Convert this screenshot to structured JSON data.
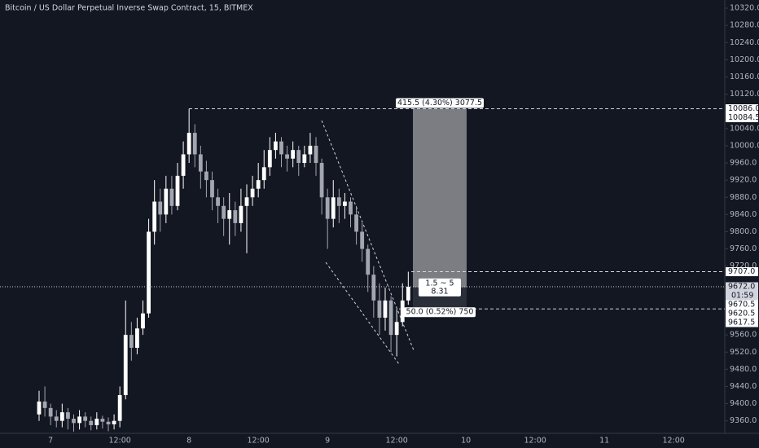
{
  "chart_data": {
    "type": "candlestick",
    "title": "Bitcoin / US Dollar Perpetual Inverse Swap Contract, 15, BITMEX",
    "up_color": "#ffffff",
    "down_color": "#a3a6af",
    "categories": [
      null,
      null,
      "7",
      null,
      null,
      null,
      null,
      null,
      null,
      null,
      null,
      null,
      null,
      null,
      "12:00",
      null,
      null,
      null,
      null,
      null,
      null,
      null,
      null,
      null,
      null,
      null,
      "8",
      null,
      null,
      null,
      null,
      null,
      null,
      null,
      null,
      null,
      null,
      null,
      "12:00",
      null,
      null,
      null,
      null,
      null,
      null,
      null,
      null,
      null,
      null,
      null,
      "9",
      null,
      null,
      null,
      null,
      null,
      null,
      null,
      null,
      null,
      null,
      null,
      "12:00",
      null,
      null,
      null,
      null,
      null,
      null,
      null,
      null,
      null,
      null,
      null,
      "10",
      null,
      null,
      null,
      null,
      null,
      null,
      null,
      null,
      null,
      null,
      null,
      "12:00",
      null,
      null,
      null,
      null,
      null,
      null,
      null,
      null,
      null,
      null,
      null,
      "11",
      null,
      null,
      null,
      null,
      null,
      null,
      null,
      null,
      null,
      null,
      null,
      "12:00",
      null,
      null,
      null,
      null,
      null,
      null,
      null,
      null
    ],
    "open": [
      9375,
      9405,
      9390,
      9370,
      9360,
      9380,
      9365,
      9355,
      9370,
      9360,
      9350,
      9365,
      9358,
      9352,
      9360,
      9420,
      9560,
      9530,
      9575,
      9610,
      9800,
      9870,
      9840,
      9900,
      9860,
      9930,
      9980,
      10030,
      9980,
      9940,
      9920,
      9880,
      9860,
      9830,
      9850,
      9820,
      9860,
      9880,
      9900,
      9920,
      9950,
      9990,
      10010,
      9980,
      9970,
      9990,
      9960,
      9980,
      10000,
      9960,
      9880,
      9830,
      9880,
      9860,
      9870,
      9840,
      9800,
      9760,
      9700,
      9640,
      9600,
      9640,
      9560,
      9590,
      9640,
      null,
      null,
      null,
      null,
      null,
      null,
      null,
      null,
      null,
      null,
      null,
      null,
      null,
      null,
      null,
      null,
      null,
      null,
      null,
      null,
      null,
      null,
      null,
      null,
      null,
      null,
      null,
      null,
      null,
      null,
      null,
      null,
      null,
      null,
      null,
      null,
      null,
      null,
      null,
      null,
      null,
      null,
      null,
      null,
      null,
      null,
      null,
      null,
      null,
      null,
      null,
      null,
      null,
      null
    ],
    "high": [
      9430,
      9440,
      9400,
      9385,
      9400,
      9390,
      9375,
      9385,
      9380,
      9370,
      9380,
      9372,
      9368,
      9375,
      9440,
      9640,
      9590,
      9600,
      9640,
      9830,
      9920,
      9900,
      9930,
      9930,
      9960,
      10010,
      10086,
      10050,
      10000,
      9965,
      9940,
      9900,
      9880,
      9890,
      9870,
      9900,
      9910,
      9930,
      9960,
      9990,
      10020,
      10030,
      10020,
      10000,
      10010,
      10000,
      10000,
      10030,
      10020,
      9970,
      9900,
      9920,
      9900,
      9890,
      9880,
      9860,
      9820,
      9770,
      9720,
      9680,
      9670,
      9650,
      9620,
      9680,
      9707,
      null,
      null,
      null,
      null,
      null,
      null,
      null,
      null,
      null,
      null,
      null,
      null,
      null,
      null,
      null,
      null,
      null,
      null,
      null,
      null,
      null,
      null,
      null,
      null,
      null,
      null,
      null,
      null,
      null,
      null,
      null,
      null,
      null,
      null,
      null,
      null,
      null,
      null,
      null,
      null,
      null,
      null,
      null,
      null,
      null,
      null,
      null,
      null,
      null,
      null,
      null,
      null,
      null,
      null
    ],
    "low": [
      9360,
      9370,
      9350,
      9345,
      9345,
      9340,
      9335,
      9340,
      9345,
      9338,
      9340,
      9342,
      9336,
      9340,
      9345,
      9410,
      9500,
      9515,
      9560,
      9600,
      9770,
      9800,
      9820,
      9840,
      9850,
      9900,
      9960,
      9950,
      9900,
      9880,
      9850,
      9820,
      9790,
      9770,
      9790,
      9800,
      9750,
      9860,
      9880,
      9900,
      9930,
      9970,
      9950,
      9940,
      9950,
      9930,
      9950,
      9960,
      9930,
      9840,
      9760,
      9810,
      9820,
      9830,
      9810,
      9770,
      9730,
      9660,
      9600,
      9560,
      9570,
      9520,
      9510,
      9580,
      9630,
      null,
      null,
      null,
      null,
      null,
      null,
      null,
      null,
      null,
      null,
      null,
      null,
      null,
      null,
      null,
      null,
      null,
      null,
      null,
      null,
      null,
      null,
      null,
      null,
      null,
      null,
      null,
      null,
      null,
      null,
      null,
      null,
      null,
      null,
      null,
      null,
      null,
      null,
      null,
      null,
      null,
      null,
      null,
      null,
      null,
      null,
      null,
      null,
      null,
      null,
      null,
      null,
      null,
      null
    ],
    "close": [
      9405,
      9390,
      9370,
      9360,
      9380,
      9365,
      9355,
      9370,
      9360,
      9350,
      9365,
      9358,
      9352,
      9360,
      9420,
      9560,
      9530,
      9575,
      9610,
      9800,
      9870,
      9840,
      9900,
      9860,
      9930,
      9980,
      10030,
      9980,
      9940,
      9920,
      9880,
      9860,
      9830,
      9850,
      9820,
      9860,
      9880,
      9900,
      9920,
      9950,
      9990,
      10010,
      9980,
      9970,
      9990,
      9960,
      9980,
      10000,
      9960,
      9880,
      9830,
      9880,
      9860,
      9870,
      9840,
      9800,
      9760,
      9700,
      9640,
      9600,
      9640,
      9560,
      9590,
      9640,
      9672,
      null,
      null,
      null,
      null,
      null,
      null,
      null,
      null,
      null,
      null,
      null,
      null,
      null,
      null,
      null,
      null,
      null,
      null,
      null,
      null,
      null,
      null,
      null,
      null,
      null,
      null,
      null,
      null,
      null,
      null,
      null,
      null,
      null,
      null,
      null,
      null,
      null,
      null,
      null,
      null,
      null,
      null,
      null,
      null,
      null,
      null,
      null,
      null,
      null,
      null,
      null,
      null,
      null,
      null
    ],
    "ylim": [
      9331,
      10339
    ],
    "yticks": [
      {
        "value": 10320,
        "label": "10320.0"
      },
      {
        "value": 10280,
        "label": "10280.0"
      },
      {
        "value": 10240,
        "label": "10240.0"
      },
      {
        "value": 10200,
        "label": "10200.0"
      },
      {
        "value": 10160,
        "label": "10160.0"
      },
      {
        "value": 10120,
        "label": "10120.0"
      },
      {
        "value": 10040,
        "label": "10040.0"
      },
      {
        "value": 10000,
        "label": "10000.0"
      },
      {
        "value": 9960,
        "label": "9960.0"
      },
      {
        "value": 9920,
        "label": "9920.0"
      },
      {
        "value": 9880,
        "label": "9880.0"
      },
      {
        "value": 9840,
        "label": "9840.0"
      },
      {
        "value": 9800,
        "label": "9800.0"
      },
      {
        "value": 9760,
        "label": "9760.0"
      },
      {
        "value": 9720,
        "label": "9720.0"
      },
      {
        "value": 9560,
        "label": "9560.0"
      },
      {
        "value": 9520,
        "label": "9520.0"
      },
      {
        "value": 9480,
        "label": "9480.0"
      },
      {
        "value": 9440,
        "label": "9440.0"
      },
      {
        "value": 9400,
        "label": "9400.0"
      },
      {
        "value": 9360,
        "label": "9360.0"
      }
    ],
    "levels": [
      {
        "value": 10086,
        "label": "10086.0",
        "line": true
      },
      {
        "value": 10084.5,
        "label": "10084.5"
      },
      {
        "value": 9707,
        "label": "9707.0",
        "line": true
      },
      {
        "value": 9670.5,
        "label": "9670.5"
      },
      {
        "value": 9620.5,
        "label": "9620.5",
        "line": true
      },
      {
        "value": 9617.5,
        "label": "9617.5"
      }
    ],
    "last_price": {
      "value": 9672,
      "label": "9672.0"
    },
    "countdown": "01:59",
    "position": {
      "target": 10086,
      "entry": 9670.5,
      "stop": 9620.5,
      "target_label": "415.5 (4.30%) 3077.5",
      "ratio_label": "1.5 ~ 5",
      "ratio_value_label": "8.31",
      "stop_label": "50.0 (0.52%) 750"
    }
  }
}
